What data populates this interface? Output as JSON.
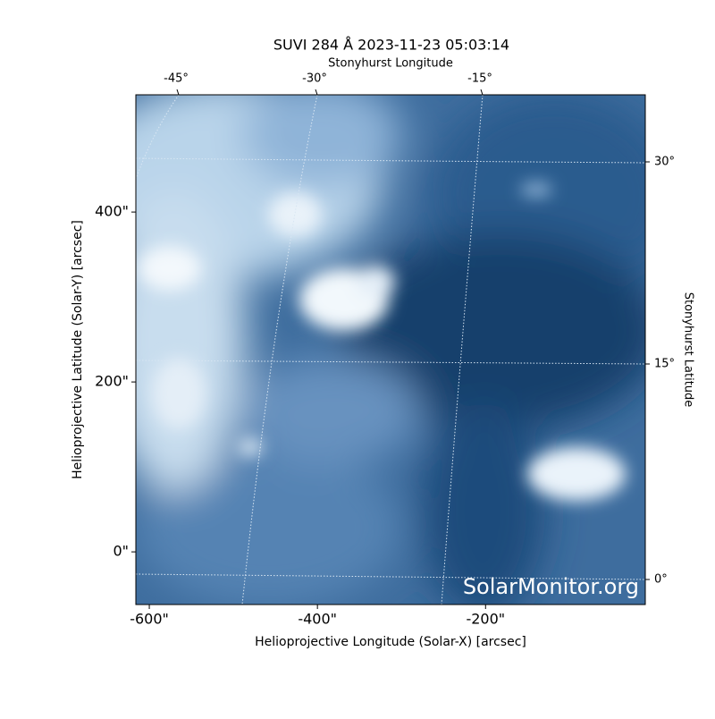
{
  "chart_data": {
    "type": "image",
    "title": "SUVI 284 Å 2023-11-23 05:03:14",
    "xlabel": "Helioprojective Longitude (Solar-X) [arcsec]",
    "ylabel": "Helioprojective Latitude (Solar-Y) [arcsec]",
    "xlim": [
      -616,
      -10
    ],
    "ylim": [
      -62,
      538
    ],
    "xticks": [
      {
        "value": -600,
        "label": "-600\""
      },
      {
        "value": -400,
        "label": "-400\""
      },
      {
        "value": -200,
        "label": "-200\""
      }
    ],
    "yticks": [
      {
        "value": 0,
        "label": "0\""
      },
      {
        "value": 200,
        "label": "200\""
      },
      {
        "value": 400,
        "label": "400\""
      }
    ],
    "top_axis_label": "Stonyhurst Longitude",
    "top_ticks": [
      "-45°",
      "-30°",
      "-15°"
    ],
    "right_axis_label": "Stonyhurst Latitude",
    "right_ticks": [
      "30°",
      "15°",
      "0°"
    ],
    "watermark": "SolarMonitor.org"
  }
}
